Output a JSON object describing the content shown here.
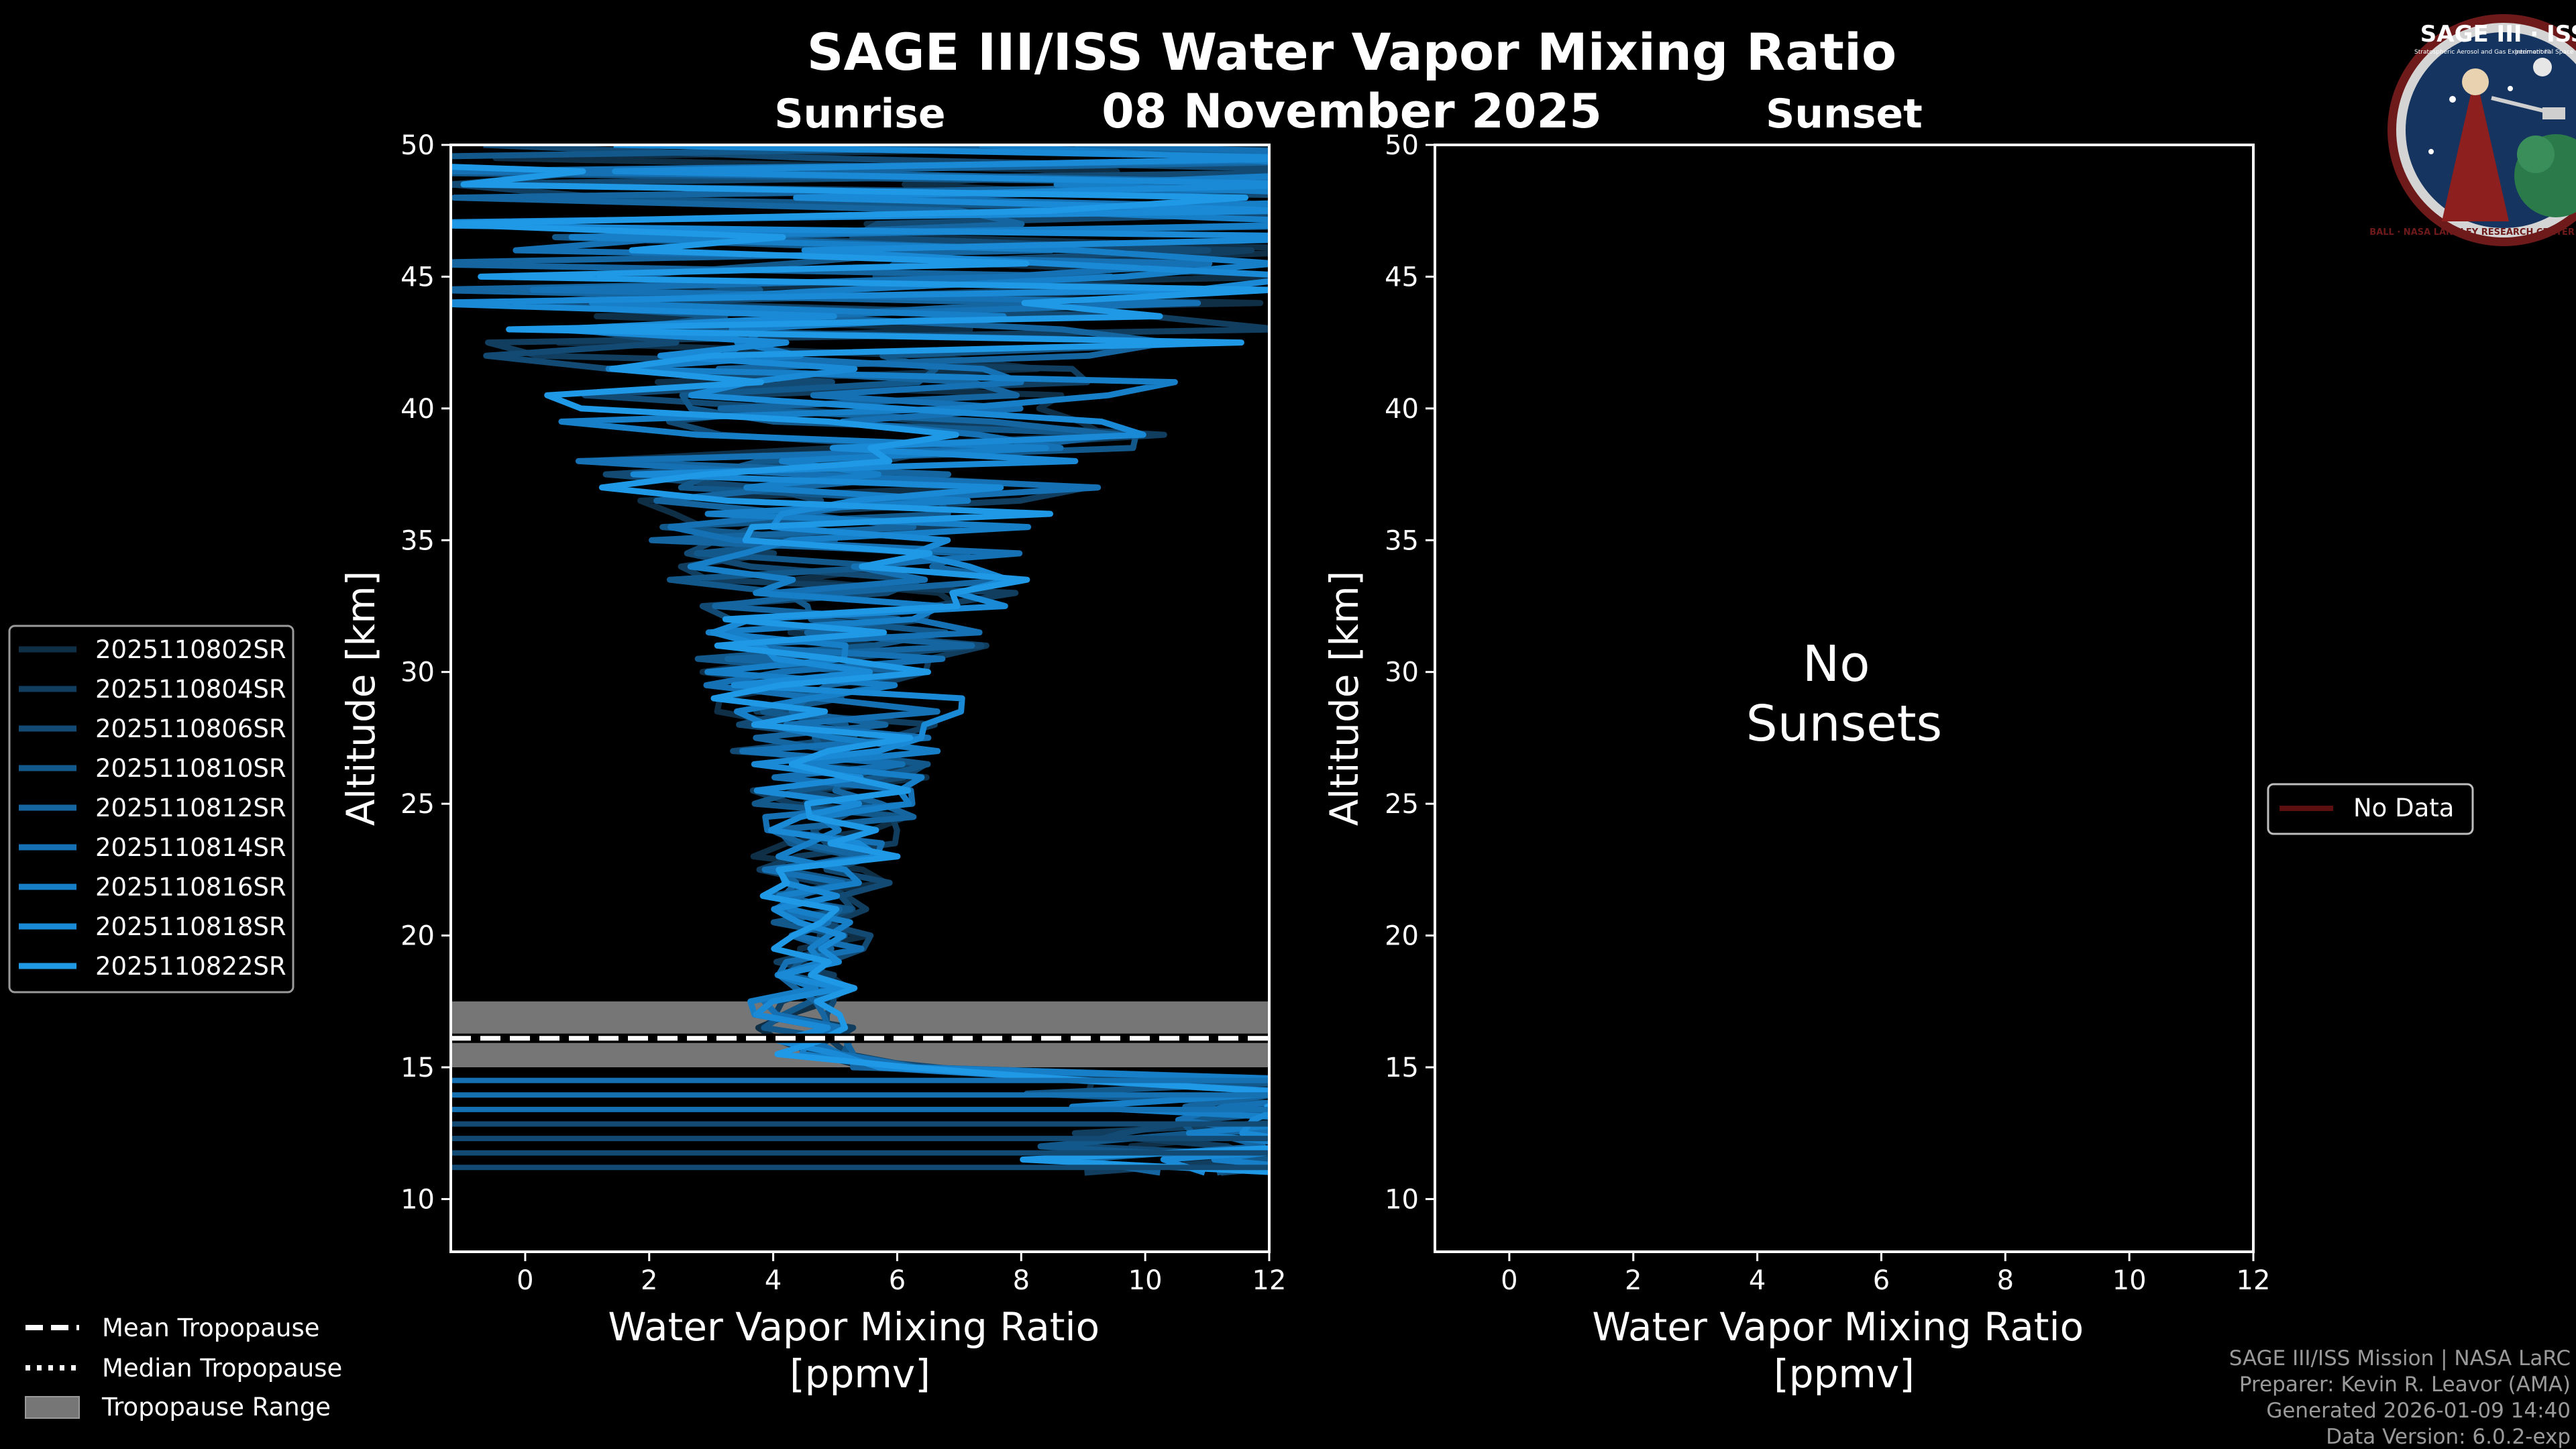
{
  "title": "SAGE III/ISS Water Vapor Mixing Ratio",
  "date": "08 November 2025",
  "logo": {
    "top_text": "SAGE III · ISS",
    "ring_text": "BALL · NASA LANGLEY RESEARCH CENTER · TAS-I · ESA",
    "sub_text_1": "Stratospheric Aerosol and Gas Experiment III",
    "sub_text_2": "International Space Station"
  },
  "footer": {
    "line1": "SAGE III/ISS Mission | NASA LaRC",
    "line2": "Preparer: Kevin R. Leavor (AMA)",
    "line3": "Generated 2026-01-09 14:40",
    "line4": "Data Version: 6.0.2-exp"
  },
  "colors": {
    "background": "#000000",
    "profile_dark": "#0d3550",
    "profile_light": "#1f9ee8",
    "tropopause_range": "#767676",
    "no_data_line": "#5c0f0f"
  },
  "chart_data": [
    {
      "type": "line",
      "panel": "sunrise",
      "title": "Sunrise",
      "xlabel": "Water Vapor Mixing Ratio\n[ppmv]",
      "ylabel": "Altitude [km]",
      "xlim": [
        -1.2,
        12
      ],
      "ylim": [
        8,
        50
      ],
      "xticks": [
        0,
        2,
        4,
        6,
        8,
        10,
        12
      ],
      "yticks": [
        10,
        15,
        20,
        25,
        30,
        35,
        40,
        45,
        50
      ],
      "grid": false,
      "legend_position": "outside-left",
      "tropopause": {
        "mean_km": 16.1,
        "median_km": 16.1,
        "range_km": [
          15.0,
          17.5
        ]
      },
      "series": [
        {
          "name": "2025110802SR",
          "color": "#0f2f47"
        },
        {
          "name": "2025110804SR",
          "color": "#113d5e"
        },
        {
          "name": "2025110806SR",
          "color": "#124a73"
        },
        {
          "name": "2025110810SR",
          "color": "#13588a"
        },
        {
          "name": "2025110812SR",
          "color": "#1465a0"
        },
        {
          "name": "2025110814SR",
          "color": "#1571b3"
        },
        {
          "name": "2025110816SR",
          "color": "#177fc7"
        },
        {
          "name": "2025110818SR",
          "color": "#1a8ad7"
        },
        {
          "name": "2025110822SR",
          "color": "#1f98e6"
        }
      ],
      "extra_legend": [
        {
          "label": "Mean Tropopause",
          "style": "dashed"
        },
        {
          "label": "Median Tropopause",
          "style": "dotted"
        },
        {
          "label": "Tropopause Range",
          "style": "patch"
        }
      ]
    },
    {
      "type": "line",
      "panel": "sunset",
      "title": "Sunset",
      "xlabel": "Water Vapor Mixing Ratio\n[ppmv]",
      "ylabel": "Altitude [km]",
      "xlim": [
        -1.2,
        12
      ],
      "ylim": [
        8,
        50
      ],
      "xticks": [
        0,
        2,
        4,
        6,
        8,
        10,
        12
      ],
      "yticks": [
        10,
        15,
        20,
        25,
        30,
        35,
        40,
        45,
        50
      ],
      "grid": false,
      "legend_position": "outside-right",
      "series": [],
      "annotation": "No\nSunsets",
      "legend": [
        {
          "label": "No Data",
          "color": "#5c0f0f"
        }
      ]
    }
  ]
}
